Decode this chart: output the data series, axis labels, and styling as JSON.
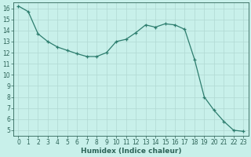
{
  "title": "",
  "xlabel": "Humidex (Indice chaleur)",
  "ylabel": "",
  "x": [
    0,
    1,
    2,
    3,
    4,
    5,
    6,
    7,
    8,
    9,
    10,
    11,
    12,
    13,
    14,
    15,
    16,
    17,
    18,
    19,
    20,
    21,
    22,
    23
  ],
  "y": [
    16.2,
    15.7,
    13.7,
    13.0,
    12.5,
    12.2,
    11.9,
    11.65,
    11.65,
    12.0,
    13.0,
    13.2,
    13.8,
    14.5,
    14.3,
    14.6,
    14.5,
    14.1,
    11.4,
    8.0,
    6.8,
    5.8,
    5.0,
    4.9
  ],
  "line_color": "#2d7d6e",
  "marker": "+",
  "bg_color": "#c8f0ea",
  "grid_color": "#b0d8d2",
  "xlim": [
    -0.5,
    23.5
  ],
  "ylim": [
    4.5,
    16.5
  ],
  "yticks": [
    5,
    6,
    7,
    8,
    9,
    10,
    11,
    12,
    13,
    14,
    15,
    16
  ],
  "xticks": [
    0,
    1,
    2,
    3,
    4,
    5,
    6,
    7,
    8,
    9,
    10,
    11,
    12,
    13,
    14,
    15,
    16,
    17,
    18,
    19,
    20,
    21,
    22,
    23
  ],
  "tick_color": "#2d6458",
  "label_color": "#2d6458",
  "tick_fontsize": 5.5,
  "xlabel_fontsize": 6.5
}
